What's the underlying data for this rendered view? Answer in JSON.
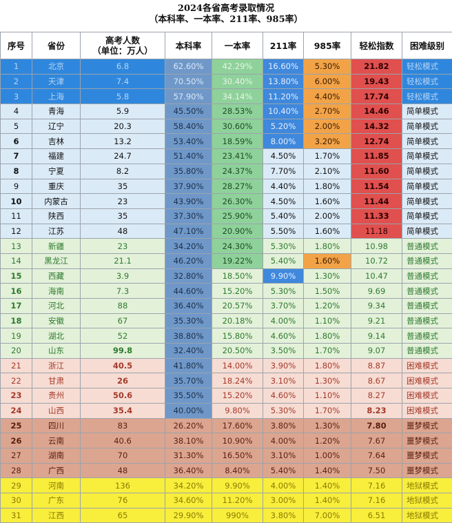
{
  "title": "2024各省高考录取情况",
  "subtitle": "（本科率、一本率、211率、985率）",
  "headers": {
    "idx": "序号",
    "province": "省份",
    "exam_line1": "高考人数",
    "exam_line2": "（单位：万人）",
    "bachelor": "本科率",
    "tier1": "一本率",
    "r211": "211率",
    "r985": "985率",
    "ease": "轻松指数",
    "level": "困难级别"
  },
  "colors": {
    "easy_row": "#2f87dd",
    "simple_row": "#dbeaf7",
    "normal_row": "#e3f1d9",
    "hard_row": "#f7dcd3",
    "nightmare_row": "#dca58f",
    "hell_row": "#f8ee3c",
    "bachelor_cell": "#6f98c9",
    "tier1_cell": "#8fd19a",
    "r211_cell": "#3f88dc",
    "r985_cell": "#f2a347",
    "ease_high": "#e0504e"
  },
  "rows": [
    {
      "idx": "1",
      "province": "北京",
      "exam": "6.8",
      "bachelor": "62.60%",
      "tier1": "42.29%",
      "r211": "16.60%",
      "r985": "5.30%",
      "ease": "21.82",
      "level": "轻松模式"
    },
    {
      "idx": "2",
      "province": "天津",
      "exam": "7.4",
      "bachelor": "70.50%",
      "tier1": "30.40%",
      "r211": "13.80%",
      "r985": "6.00%",
      "ease": "19.43",
      "level": "轻松模式"
    },
    {
      "idx": "3",
      "province": "上海",
      "exam": "5.8",
      "bachelor": "57.90%",
      "tier1": "34.14%",
      "r211": "11.20%",
      "r985": "4.40%",
      "ease": "17.74",
      "level": "轻松模式"
    },
    {
      "idx": "4",
      "province": "青海",
      "exam": "5.9",
      "bachelor": "45.50%",
      "tier1": "28.53%",
      "r211": "10.40%",
      "r985": "2.70%",
      "ease": "14.46",
      "level": "简单模式"
    },
    {
      "idx": "5",
      "province": "辽宁",
      "exam": "20.3",
      "bachelor": "58.40%",
      "tier1": "30.60%",
      "r211": "5.20%",
      "r985": "2.00%",
      "ease": "14.32",
      "level": "简单模式"
    },
    {
      "idx": "6",
      "province": "吉林",
      "exam": "13.2",
      "bachelor": "53.40%",
      "tier1": "18.59%",
      "r211": "8.00%",
      "r985": "3.20%",
      "ease": "12.74",
      "level": "简单模式"
    },
    {
      "idx": "7",
      "province": "福建",
      "exam": "24.7",
      "bachelor": "51.40%",
      "tier1": "23.41%",
      "r211": "4.50%",
      "r985": "1.70%",
      "ease": "11.85",
      "level": "简单模式"
    },
    {
      "idx": "8",
      "province": "宁夏",
      "exam": "8.2",
      "bachelor": "35.80%",
      "tier1": "24.37%",
      "r211": "7.70%",
      "r985": "2.10%",
      "ease": "11.60",
      "level": "简单模式"
    },
    {
      "idx": "9",
      "province": "重庆",
      "exam": "35",
      "bachelor": "37.90%",
      "tier1": "28.27%",
      "r211": "4.40%",
      "r985": "1.80%",
      "ease": "11.54",
      "level": "简单模式"
    },
    {
      "idx": "10",
      "province": "内蒙古",
      "exam": "23",
      "bachelor": "43.90%",
      "tier1": "26.30%",
      "r211": "4.50%",
      "r985": "1.60%",
      "ease": "11.44",
      "level": "简单模式"
    },
    {
      "idx": "11",
      "province": "陕西",
      "exam": "35",
      "bachelor": "37.30%",
      "tier1": "25.90%",
      "r211": "5.40%",
      "r985": "2.00%",
      "ease": "11.33",
      "level": "简单模式"
    },
    {
      "idx": "12",
      "province": "江苏",
      "exam": "48",
      "bachelor": "47.10%",
      "tier1": "20.90%",
      "r211": "5.50%",
      "r985": "1.60%",
      "ease": "11.18",
      "level": "简单模式"
    },
    {
      "idx": "13",
      "province": "新疆",
      "exam": "23",
      "bachelor": "34.20%",
      "tier1": "24.30%",
      "r211": "5.30%",
      "r985": "1.80%",
      "ease": "10.98",
      "level": "普通模式"
    },
    {
      "idx": "14",
      "province": "黑龙江",
      "exam": "21.1",
      "bachelor": "46.20%",
      "tier1": "19.22%",
      "r211": "5.40%",
      "r985": "1.60%",
      "ease": "10.72",
      "level": "普通模式"
    },
    {
      "idx": "15",
      "province": "西藏",
      "exam": "3.9",
      "bachelor": "32.80%",
      "tier1": "18.50%",
      "r211": "9.90%",
      "r985": "1.30%",
      "ease": "10.47",
      "level": "普通模式"
    },
    {
      "idx": "16",
      "province": "海南",
      "exam": "7.3",
      "bachelor": "44.60%",
      "tier1": "15.20%",
      "r211": "5.30%",
      "r985": "1.50%",
      "ease": "9.69",
      "level": "普通模式"
    },
    {
      "idx": "17",
      "province": "河北",
      "exam": "88",
      "bachelor": "36.40%",
      "tier1": "20.57%",
      "r211": "3.70%",
      "r985": "1.20%",
      "ease": "9.34",
      "level": "普通模式"
    },
    {
      "idx": "18",
      "province": "安徽",
      "exam": "67",
      "bachelor": "35.30%",
      "tier1": "20.18%",
      "r211": "4.00%",
      "r985": "1.10%",
      "ease": "9.21",
      "level": "普通模式"
    },
    {
      "idx": "19",
      "province": "湖北",
      "exam": "52",
      "bachelor": "38.80%",
      "tier1": "15.80%",
      "r211": "4.60%",
      "r985": "1.80%",
      "ease": "9.14",
      "level": "普通模式"
    },
    {
      "idx": "20",
      "province": "山东",
      "exam": "99.8",
      "bachelor": "32.40%",
      "tier1": "20.50%",
      "r211": "3.50%",
      "r985": "1.70%",
      "ease": "9.07",
      "level": "普通模式"
    },
    {
      "idx": "21",
      "province": "浙江",
      "exam": "40.5",
      "bachelor": "41.80%",
      "tier1": "14.00%",
      "r211": "3.90%",
      "r985": "1.80%",
      "ease": "8.87",
      "level": "困难模式"
    },
    {
      "idx": "22",
      "province": "甘肃",
      "exam": "26",
      "bachelor": "35.70%",
      "tier1": "18.24%",
      "r211": "3.10%",
      "r985": "1.30%",
      "ease": "8.67",
      "level": "困难模式"
    },
    {
      "idx": "23",
      "province": "贵州",
      "exam": "50.6",
      "bachelor": "35.50%",
      "tier1": "15.20%",
      "r211": "4.60%",
      "r985": "1.10%",
      "ease": "8.27",
      "level": "困难模式"
    },
    {
      "idx": "24",
      "province": "山西",
      "exam": "35.4",
      "bachelor": "40.00%",
      "tier1": "9.80%",
      "r211": "5.30%",
      "r985": "1.70%",
      "ease": "8.23",
      "level": "困难模式"
    },
    {
      "idx": "25",
      "province": "四川",
      "exam": "83",
      "bachelor": "26.20%",
      "tier1": "17.60%",
      "r211": "3.80%",
      "r985": "1.30%",
      "ease": "7.80",
      "level": "噩梦模式"
    },
    {
      "idx": "26",
      "province": "云南",
      "exam": "40.6",
      "bachelor": "38.10%",
      "tier1": "10.90%",
      "r211": "4.00%",
      "r985": "1.20%",
      "ease": "7.67",
      "level": "噩梦模式"
    },
    {
      "idx": "27",
      "province": "湖南",
      "exam": "70",
      "bachelor": "31.30%",
      "tier1": "16.50%",
      "r211": "3.10%",
      "r985": "1.00%",
      "ease": "7.64",
      "level": "噩梦模式"
    },
    {
      "idx": "28",
      "province": "广西",
      "exam": "48",
      "bachelor": "36.40%",
      "tier1": "8.40%",
      "r211": "5.40%",
      "r985": "1.40%",
      "ease": "7.50",
      "level": "噩梦模式"
    },
    {
      "idx": "29",
      "province": "河南",
      "exam": "136",
      "bachelor": "34.20%",
      "tier1": "9.90%",
      "r211": "4.00%",
      "r985": "1.40%",
      "ease": "7.16",
      "level": "地狱模式"
    },
    {
      "idx": "30",
      "province": "广东",
      "exam": "76",
      "bachelor": "34.60%",
      "tier1": "11.20%",
      "r211": "3.00%",
      "r985": "1.40%",
      "ease": "7.16",
      "level": "地狱模式"
    },
    {
      "idx": "31",
      "province": "江西",
      "exam": "65",
      "bachelor": "29.90%",
      "tier1": "990%",
      "r211": "3.80%",
      "r985": "7.00%",
      "ease": "6.51",
      "level": "地狱模式"
    }
  ]
}
